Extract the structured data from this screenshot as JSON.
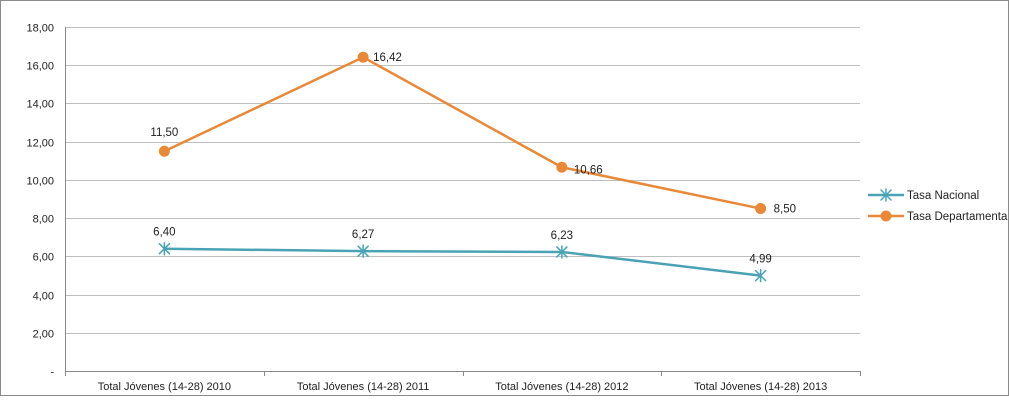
{
  "chart_data": {
    "type": "line",
    "categories": [
      "Total Jóvenes (14-28) 2010",
      "Total Jóvenes (14-28) 2011",
      "Total Jóvenes (14-28) 2012",
      "Total Jóvenes (14-28) 2013"
    ],
    "series": [
      {
        "name": "Tasa Nacional",
        "values": [
          6.4,
          6.27,
          6.23,
          4.99
        ],
        "labels": [
          "6,40",
          "6,27",
          "6,23",
          "4,99"
        ],
        "color": "#4aa3b5",
        "marker": "asterisk"
      },
      {
        "name": "Tasa Departamenta",
        "values": [
          11.5,
          16.42,
          10.66,
          8.5
        ],
        "labels": [
          "11,50",
          "16,42",
          "10,66",
          "8,50"
        ],
        "color": "#e8893a",
        "marker": "circle"
      }
    ],
    "yticks": [
      "-",
      "2,00",
      "4,00",
      "6,00",
      "8,00",
      "10,00",
      "12,00",
      "14,00",
      "16,00",
      "18,00"
    ],
    "ylim": [
      0,
      18
    ],
    "grid": true,
    "legend": "right",
    "title": "",
    "xlabel": "",
    "ylabel": ""
  }
}
